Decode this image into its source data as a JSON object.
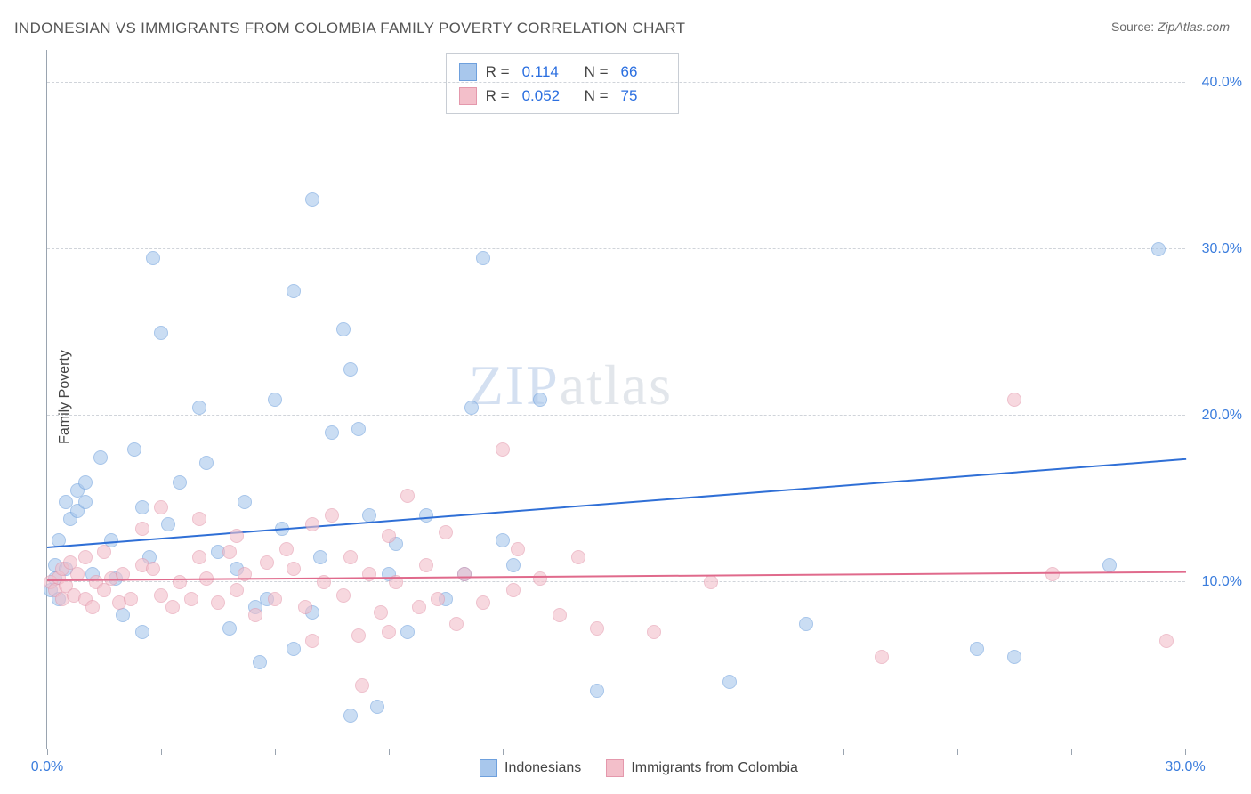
{
  "title": "INDONESIAN VS IMMIGRANTS FROM COLOMBIA FAMILY POVERTY CORRELATION CHART",
  "source_label": "Source:",
  "source_value": "ZipAtlas.com",
  "watermark_zip": "ZIP",
  "watermark_atlas": "atlas",
  "yaxis_title": "Family Poverty",
  "chart": {
    "type": "scatter",
    "xlim": [
      0,
      30
    ],
    "ylim": [
      0,
      42
    ],
    "x_ticks": [
      0,
      3,
      6,
      9,
      12,
      15,
      18,
      21,
      24,
      27,
      30
    ],
    "x_tick_labels": {
      "0": "0.0%",
      "30": "30.0%"
    },
    "y_gridlines": [
      10,
      20,
      30,
      40
    ],
    "y_tick_labels": {
      "10": "10.0%",
      "20": "20.0%",
      "30": "30.0%",
      "40": "40.0%"
    },
    "background_color": "#ffffff",
    "grid_color": "#d0d4da",
    "axis_color": "#9aa4b0",
    "tick_label_color": "#3b7ddd",
    "marker_radius": 8,
    "marker_border_width": 1,
    "series": [
      {
        "name": "Indonesians",
        "fill_color": "#a8c7ec",
        "border_color": "#6ea0dd",
        "fill_opacity": 0.6,
        "r_label": "R =",
        "r_value": "0.114",
        "n_label": "N =",
        "n_value": "66",
        "trend": {
          "x1": 0,
          "y1": 12.2,
          "x2": 30,
          "y2": 17.5,
          "color": "#2f6fd6",
          "width": 2
        },
        "points": [
          [
            0.1,
            9.5
          ],
          [
            0.2,
            10.2
          ],
          [
            0.2,
            11.0
          ],
          [
            0.3,
            9.0
          ],
          [
            0.3,
            12.5
          ],
          [
            0.5,
            10.8
          ],
          [
            0.5,
            14.8
          ],
          [
            0.6,
            13.8
          ],
          [
            0.8,
            15.5
          ],
          [
            0.8,
            14.3
          ],
          [
            1.0,
            16.0
          ],
          [
            1.0,
            14.8
          ],
          [
            1.2,
            10.5
          ],
          [
            1.4,
            17.5
          ],
          [
            1.7,
            12.5
          ],
          [
            1.8,
            10.2
          ],
          [
            2.0,
            8.0
          ],
          [
            2.3,
            18.0
          ],
          [
            2.5,
            7.0
          ],
          [
            2.5,
            14.5
          ],
          [
            2.7,
            11.5
          ],
          [
            2.8,
            29.5
          ],
          [
            3.0,
            25.0
          ],
          [
            3.2,
            13.5
          ],
          [
            3.5,
            16.0
          ],
          [
            4.0,
            20.5
          ],
          [
            4.2,
            17.2
          ],
          [
            4.5,
            11.8
          ],
          [
            4.8,
            7.2
          ],
          [
            5.0,
            10.8
          ],
          [
            5.2,
            14.8
          ],
          [
            5.5,
            8.5
          ],
          [
            5.6,
            5.2
          ],
          [
            5.8,
            9.0
          ],
          [
            6.0,
            21.0
          ],
          [
            6.2,
            13.2
          ],
          [
            6.5,
            27.5
          ],
          [
            6.5,
            6.0
          ],
          [
            7.0,
            33.0
          ],
          [
            7.0,
            8.2
          ],
          [
            7.2,
            11.5
          ],
          [
            7.5,
            19.0
          ],
          [
            7.8,
            25.2
          ],
          [
            8.0,
            22.8
          ],
          [
            8.0,
            2.0
          ],
          [
            8.2,
            19.2
          ],
          [
            8.5,
            14.0
          ],
          [
            8.7,
            2.5
          ],
          [
            9.0,
            10.5
          ],
          [
            9.2,
            12.3
          ],
          [
            9.5,
            7.0
          ],
          [
            10.0,
            14.0
          ],
          [
            10.5,
            9.0
          ],
          [
            11.0,
            10.5
          ],
          [
            11.2,
            20.5
          ],
          [
            11.5,
            29.5
          ],
          [
            12.0,
            12.5
          ],
          [
            12.3,
            11.0
          ],
          [
            13.0,
            21.0
          ],
          [
            14.5,
            3.5
          ],
          [
            18.0,
            4.0
          ],
          [
            20.0,
            7.5
          ],
          [
            24.5,
            6.0
          ],
          [
            25.5,
            5.5
          ],
          [
            28.0,
            11.0
          ],
          [
            29.3,
            30.0
          ]
        ]
      },
      {
        "name": "Immigrants from Colombia",
        "fill_color": "#f3bfca",
        "border_color": "#e498ac",
        "fill_opacity": 0.6,
        "r_label": "R =",
        "r_value": "0.052",
        "n_label": "N =",
        "n_value": "75",
        "trend": {
          "x1": 0,
          "y1": 10.2,
          "x2": 30,
          "y2": 10.7,
          "color": "#e06a8c",
          "width": 2
        },
        "points": [
          [
            0.1,
            10.0
          ],
          [
            0.2,
            9.5
          ],
          [
            0.3,
            10.3
          ],
          [
            0.4,
            9.0
          ],
          [
            0.4,
            10.8
          ],
          [
            0.5,
            9.8
          ],
          [
            0.6,
            11.2
          ],
          [
            0.7,
            9.2
          ],
          [
            0.8,
            10.5
          ],
          [
            1.0,
            9.0
          ],
          [
            1.0,
            11.5
          ],
          [
            1.2,
            8.5
          ],
          [
            1.3,
            10.0
          ],
          [
            1.5,
            9.5
          ],
          [
            1.5,
            11.8
          ],
          [
            1.7,
            10.2
          ],
          [
            1.9,
            8.8
          ],
          [
            2.0,
            10.5
          ],
          [
            2.2,
            9.0
          ],
          [
            2.5,
            11.0
          ],
          [
            2.5,
            13.2
          ],
          [
            2.8,
            10.8
          ],
          [
            3.0,
            9.2
          ],
          [
            3.0,
            14.5
          ],
          [
            3.3,
            8.5
          ],
          [
            3.5,
            10.0
          ],
          [
            3.8,
            9.0
          ],
          [
            4.0,
            11.5
          ],
          [
            4.0,
            13.8
          ],
          [
            4.2,
            10.2
          ],
          [
            4.5,
            8.8
          ],
          [
            4.8,
            11.8
          ],
          [
            5.0,
            9.5
          ],
          [
            5.0,
            12.8
          ],
          [
            5.2,
            10.5
          ],
          [
            5.5,
            8.0
          ],
          [
            5.8,
            11.2
          ],
          [
            6.0,
            9.0
          ],
          [
            6.3,
            12.0
          ],
          [
            6.5,
            10.8
          ],
          [
            6.8,
            8.5
          ],
          [
            7.0,
            13.5
          ],
          [
            7.0,
            6.5
          ],
          [
            7.3,
            10.0
          ],
          [
            7.5,
            14.0
          ],
          [
            7.8,
            9.2
          ],
          [
            8.0,
            11.5
          ],
          [
            8.2,
            6.8
          ],
          [
            8.3,
            3.8
          ],
          [
            8.5,
            10.5
          ],
          [
            8.8,
            8.2
          ],
          [
            9.0,
            12.8
          ],
          [
            9.0,
            7.0
          ],
          [
            9.2,
            10.0
          ],
          [
            9.5,
            15.2
          ],
          [
            9.8,
            8.5
          ],
          [
            10.0,
            11.0
          ],
          [
            10.3,
            9.0
          ],
          [
            10.5,
            13.0
          ],
          [
            10.8,
            7.5
          ],
          [
            11.0,
            10.5
          ],
          [
            11.5,
            8.8
          ],
          [
            12.0,
            18.0
          ],
          [
            12.3,
            9.5
          ],
          [
            12.4,
            12.0
          ],
          [
            13.0,
            10.2
          ],
          [
            13.5,
            8.0
          ],
          [
            14.0,
            11.5
          ],
          [
            14.5,
            7.2
          ],
          [
            16.0,
            7.0
          ],
          [
            17.5,
            10.0
          ],
          [
            22.0,
            5.5
          ],
          [
            25.5,
            21.0
          ],
          [
            26.5,
            10.5
          ],
          [
            29.5,
            6.5
          ]
        ]
      }
    ]
  }
}
